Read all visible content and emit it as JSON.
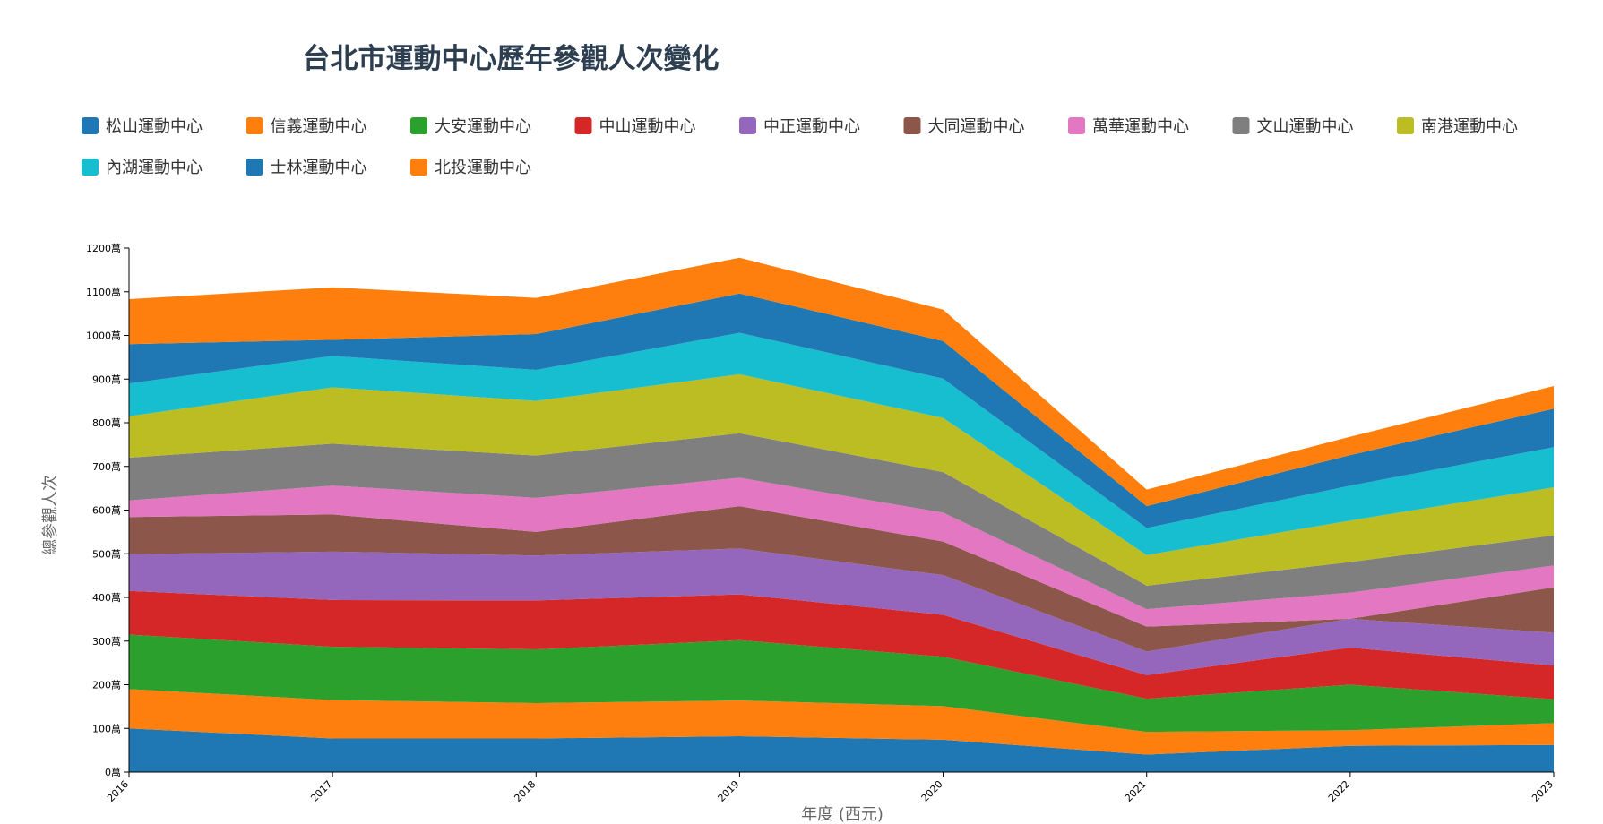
{
  "chart_data": {
    "type": "area",
    "stacked": true,
    "title": "台北市運動中心歷年參觀人次變化",
    "xlabel": "年度 (西元)",
    "ylabel": "總參觀人次",
    "x": [
      "2016",
      "2017",
      "2018",
      "2019",
      "2020",
      "2021",
      "2022",
      "2023"
    ],
    "ylim": [
      0,
      1200
    ],
    "y_unit": "萬",
    "yticks": [
      "0萬",
      "100萬",
      "200萬",
      "300萬",
      "400萬",
      "500萬",
      "600萬",
      "700萬",
      "800萬",
      "900萬",
      "1000萬",
      "1100萬",
      "1200萬"
    ],
    "legend_position": "top",
    "grid": false,
    "series": [
      {
        "name": "松山運動中心",
        "color": "#1f77b4",
        "values": [
          100,
          77,
          77,
          82,
          74,
          40,
          60,
          62
        ]
      },
      {
        "name": "信義運動中心",
        "color": "#ff7f0e",
        "values": [
          90,
          88,
          81,
          82,
          77,
          52,
          36,
          50
        ]
      },
      {
        "name": "大安運動中心",
        "color": "#2ca02c",
        "values": [
          125,
          122,
          123,
          138,
          113,
          76,
          104,
          55
        ]
      },
      {
        "name": "中山運動中心",
        "color": "#d62728",
        "values": [
          100,
          107,
          112,
          105,
          96,
          54,
          85,
          77
        ]
      },
      {
        "name": "中正運動中心",
        "color": "#9467bd",
        "values": [
          84,
          111,
          103,
          105,
          91,
          54,
          66,
          75
        ]
      },
      {
        "name": "大同運動中心",
        "color": "#8c564b",
        "values": [
          85,
          85,
          54,
          97,
          77,
          57,
          0,
          104
        ]
      },
      {
        "name": "萬華運動中心",
        "color": "#e377c2",
        "values": [
          38,
          66,
          78,
          65,
          66,
          40,
          60,
          50
        ]
      },
      {
        "name": "文山運動中心",
        "color": "#7f7f7f",
        "values": [
          98,
          96,
          97,
          102,
          93,
          54,
          70,
          69
        ]
      },
      {
        "name": "南港運動中心",
        "color": "#bcbd22",
        "values": [
          95,
          129,
          125,
          135,
          124,
          70,
          95,
          110
        ]
      },
      {
        "name": "內湖運動中心",
        "color": "#17becf",
        "values": [
          75,
          72,
          71,
          95,
          90,
          62,
          80,
          92
        ]
      },
      {
        "name": "士林運動中心",
        "color": "#1f77b4",
        "values": [
          90,
          37,
          82,
          90,
          86,
          50,
          70,
          88
        ]
      },
      {
        "name": "北投運動中心",
        "color": "#ff7f0e",
        "values": [
          103,
          120,
          83,
          82,
          72,
          38,
          42,
          52
        ]
      }
    ]
  }
}
